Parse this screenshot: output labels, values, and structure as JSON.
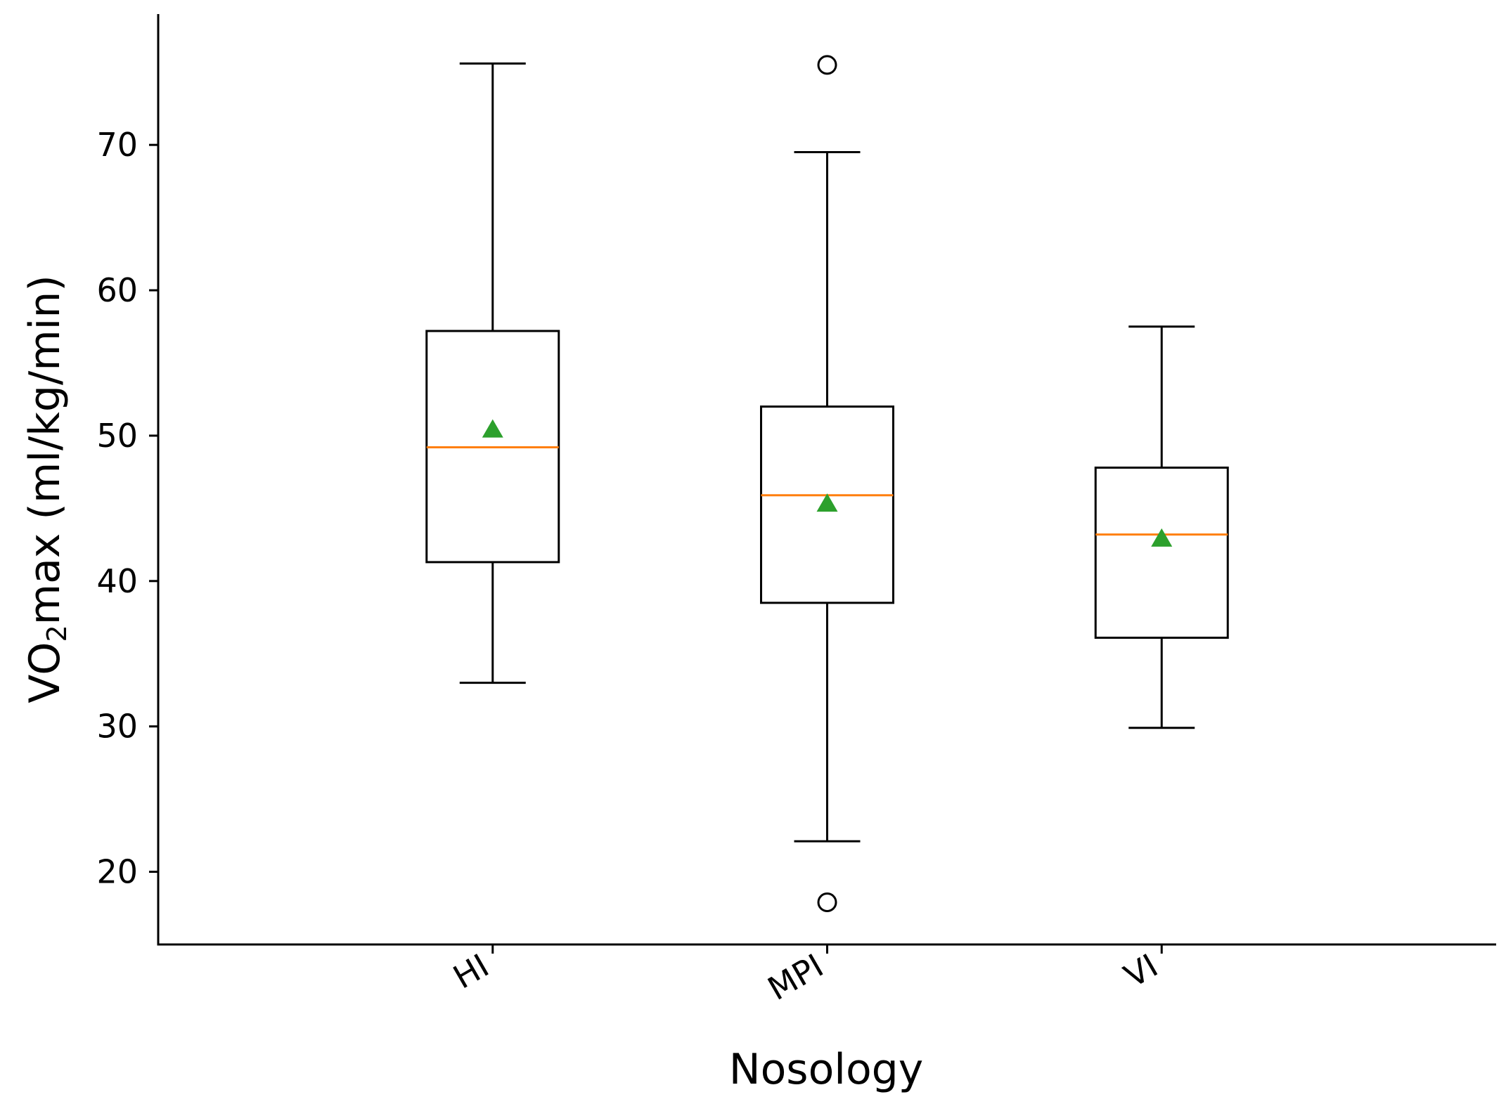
{
  "chart_data": {
    "type": "boxplot",
    "xlabel": "Nosology",
    "ylabel_main": "VO",
    "ylabel_sub": "2",
    "ylabel_rest": "max (ml/kg/min)",
    "categories": [
      "HI",
      "MPI",
      "VI"
    ],
    "ylim": [
      15,
      79
    ],
    "yticks": [
      20,
      30,
      40,
      50,
      60,
      70
    ],
    "grid": false,
    "boxes": [
      {
        "category": "HI",
        "whisker_low": 33.0,
        "q1": 41.3,
        "median": 49.2,
        "q3": 57.2,
        "whisker_high": 75.6,
        "mean": 50.4,
        "outliers": []
      },
      {
        "category": "MPI",
        "whisker_low": 22.1,
        "q1": 38.5,
        "median": 45.9,
        "q3": 52.0,
        "whisker_high": 69.5,
        "mean": 45.3,
        "outliers": [
          75.5,
          17.9
        ]
      },
      {
        "category": "VI",
        "whisker_low": 29.9,
        "q1": 36.1,
        "median": 43.2,
        "q3": 47.8,
        "whisker_high": 57.5,
        "mean": 42.9,
        "outliers": []
      }
    ],
    "colors": {
      "box": "#000000",
      "median": "#ff7f0e",
      "mean": "#2ca02c",
      "outlier": "#000000"
    }
  }
}
